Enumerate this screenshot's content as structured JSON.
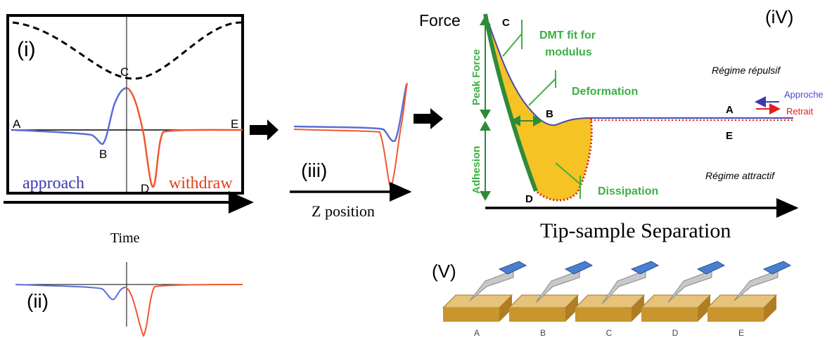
{
  "panels": {
    "i": {
      "label": "(i)",
      "points": [
        "A",
        "B",
        "C",
        "D",
        "E"
      ],
      "approach": "approach",
      "withdraw": "withdraw",
      "x_axis": "Time"
    },
    "ii": {
      "label": "(ii)"
    },
    "iii": {
      "label": "(iii)",
      "x_axis": "Z position"
    },
    "iv": {
      "label": "(iV)",
      "y_axis": "Force",
      "x_axis": "Tip-sample Separation",
      "points": [
        "C",
        "B",
        "D",
        "A",
        "E"
      ],
      "annotations": {
        "dmt": [
          "DMT fit for",
          "modulus"
        ],
        "deformation": "Deformation",
        "dissipation": "Dissipation",
        "peak_force": "Peak Force",
        "adhesion": "Adhesion"
      },
      "regimes": [
        "Régime répulsif",
        "Régime attractif"
      ],
      "legend": [
        "Approche",
        "Retrait"
      ]
    },
    "v": {
      "label": "(V)",
      "steps": [
        "A",
        "B",
        "C",
        "D",
        "E"
      ]
    }
  }
}
